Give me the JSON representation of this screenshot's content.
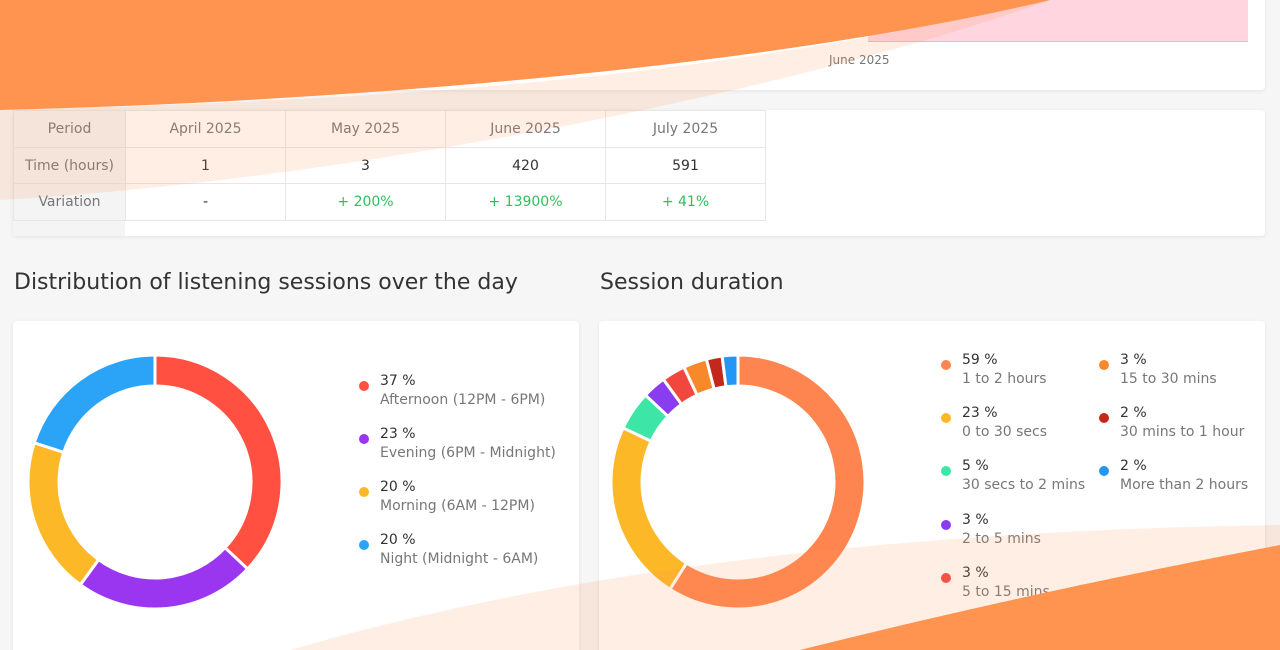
{
  "top_chart": {
    "x_tick": "June 2025"
  },
  "table": {
    "headers": [
      "Period",
      "April 2025",
      "May 2025",
      "June 2025",
      "July 2025"
    ],
    "rows": [
      [
        "Time (hours)",
        "1",
        "3",
        "420",
        "591"
      ],
      [
        "Variation",
        "-",
        "+ 200%",
        "+ 13900%",
        "+ 41%"
      ]
    ]
  },
  "sections": {
    "day_distribution_title": "Distribution of listening sessions over the day",
    "session_duration_title": "Session duration"
  },
  "chart_data": [
    {
      "type": "pie",
      "title": "Distribution of listening sessions over the day",
      "slices": [
        {
          "value": 37,
          "percent_label": "37 %",
          "label": "Afternoon (12PM - 6PM)",
          "color": "#ff5042"
        },
        {
          "value": 23,
          "percent_label": "23 %",
          "label": "Evening (6PM - Midnight)",
          "color": "#9a36f0"
        },
        {
          "value": 20,
          "percent_label": "20 %",
          "label": "Morning (6AM - 12PM)",
          "color": "#fdb827"
        },
        {
          "value": 20,
          "percent_label": "20 %",
          "label": "Night (Midnight - 6AM)",
          "color": "#2ba4f8"
        }
      ]
    },
    {
      "type": "pie",
      "title": "Session duration",
      "slices": [
        {
          "value": 59,
          "percent_label": "59 %",
          "label": "1 to 2 hours",
          "color": "#ff8550"
        },
        {
          "value": 23,
          "percent_label": "23 %",
          "label": "0 to 30 secs",
          "color": "#fdb827"
        },
        {
          "value": 5,
          "percent_label": "5 %",
          "label": "30 secs to 2 mins",
          "color": "#3de6a7"
        },
        {
          "value": 3,
          "percent_label": "3 %",
          "label": "2 to 5 mins",
          "color": "#8a3df0"
        },
        {
          "value": 3,
          "percent_label": "3 %",
          "label": "5 to 15 mins",
          "color": "#f2473f"
        },
        {
          "value": 3,
          "percent_label": "3 %",
          "label": "15 to 30 mins",
          "color": "#f8892a"
        },
        {
          "value": 2,
          "percent_label": "2 %",
          "label": "30 mins to 1 hour",
          "color": "#c4281b"
        },
        {
          "value": 2,
          "percent_label": "2 %",
          "label": "More than 2 hours",
          "color": "#2496f3"
        }
      ]
    }
  ]
}
